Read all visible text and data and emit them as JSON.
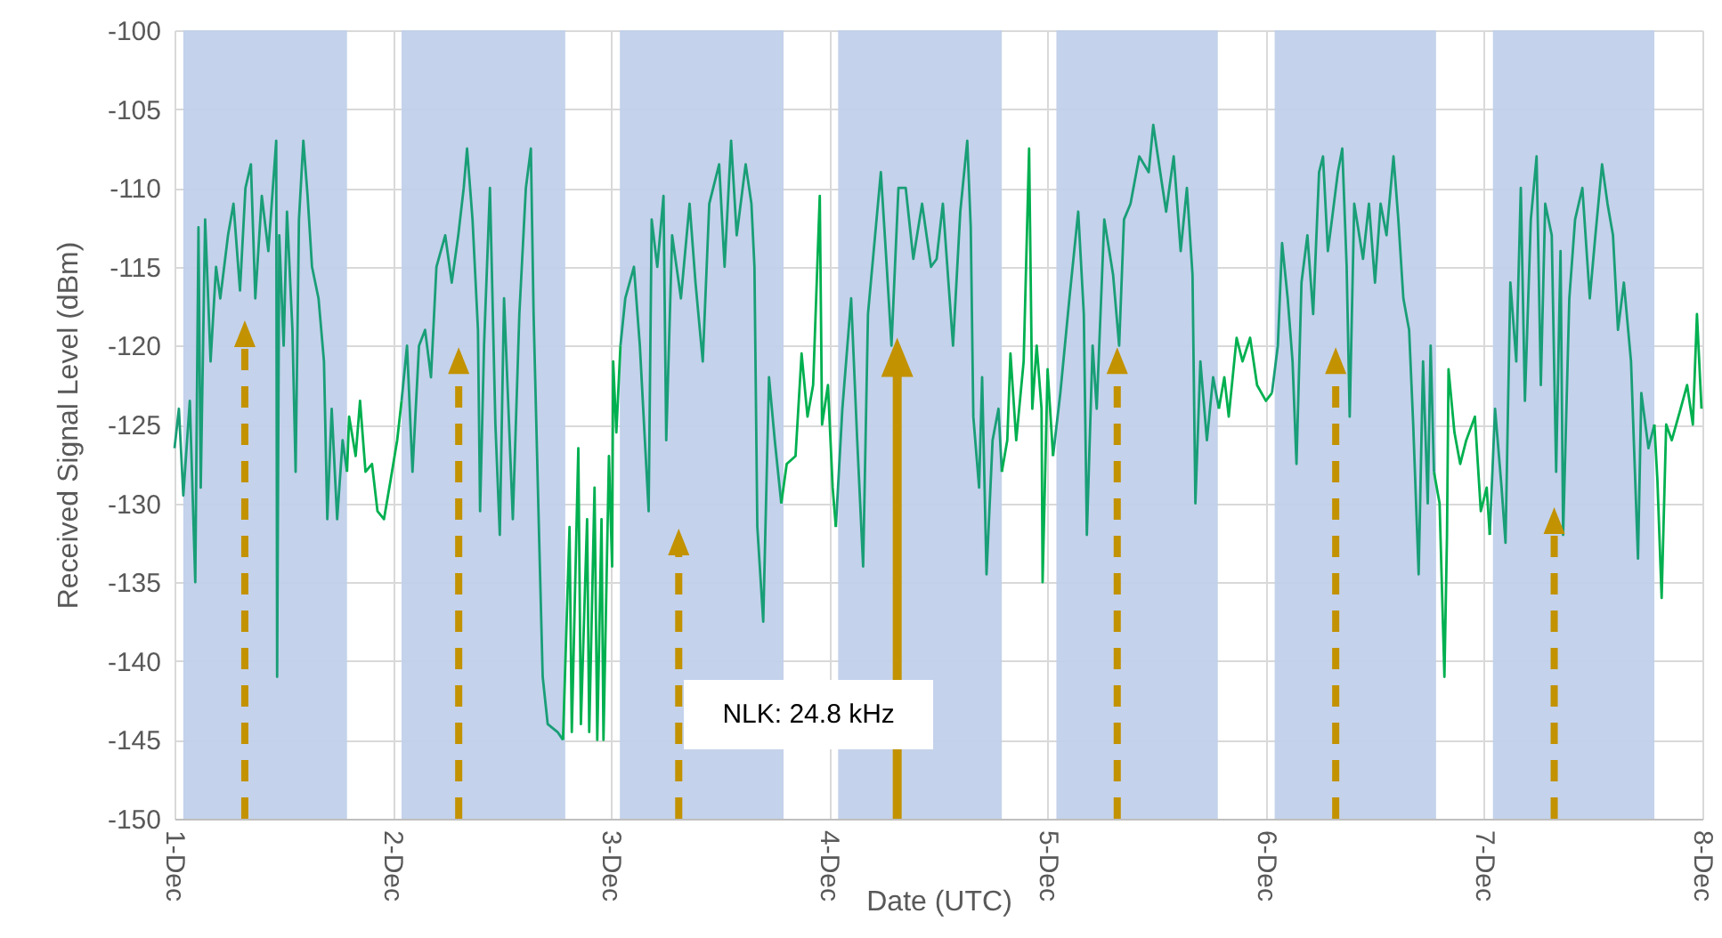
{
  "chart_data": {
    "type": "line",
    "xlabel": "Date (UTC)",
    "ylabel": "Received Signal Level (dBm)",
    "xlim": [
      "--12-01",
      "--12-08"
    ],
    "xticks": [
      {
        "value": "--12-01",
        "label": "1-Dec"
      },
      {
        "value": "--12-02",
        "label": "2-Dec"
      },
      {
        "value": "--12-03",
        "label": "3-Dec"
      },
      {
        "value": "--12-04",
        "label": "4-Dec"
      },
      {
        "value": "--12-05",
        "label": "5-Dec"
      },
      {
        "value": "--12-06",
        "label": "6-Dec"
      },
      {
        "value": "--12-07",
        "label": "7-Dec"
      },
      {
        "value": "--12-08",
        "label": "8-Dec"
      }
    ],
    "ylim": [
      -150,
      -100
    ],
    "yticks": [
      -150,
      -145,
      -140,
      -135,
      -130,
      -125,
      -120,
      -115,
      -110,
      -105,
      -100
    ],
    "grid": true,
    "series": [
      {
        "color": "#199e77",
        "x": [
          "--12-01T00:00",
          "--12-01T00:29",
          "--12-01T00:58",
          "--12-01T01:41",
          "--12-01T02:17",
          "--12-01T02:38",
          "--12-01T02:53",
          "--12-01T03:22",
          "--12-01T03:58",
          "--12-01T04:34",
          "--12-01T05:02",
          "--12-01T05:53",
          "--12-01T06:29",
          "--12-01T07:12",
          "--12-01T07:48",
          "--12-01T08:24",
          "--12-01T08:53",
          "--12-01T09:36",
          "--12-01T10:19",
          "--12-01T11:11",
          "--12-01T11:17",
          "--12-01T11:31",
          "--12-01T12:00",
          "--12-01T12:22",
          "--12-01T12:58",
          "--12-01T13:19",
          "--12-01T13:41",
          "--12-01T14:10",
          "--12-01T14:38",
          "--12-01T15:07",
          "--12-01T15:50",
          "--12-01T16:26",
          "--12-01T16:48",
          "--12-01T17:17",
          "--12-01T17:53",
          "--12-01T18:29",
          "--12-01T18:58",
          "--12-01T21:36",
          "--12-02T00:58",
          "--12-02T01:34",
          "--12-02T02:10",
          "--12-02T02:53",
          "--12-02T03:33",
          "--12-02T04:12",
          "--12-02T04:48",
          "--12-02T05:46",
          "--12-02T06:29",
          "--12-02T07:12",
          "--12-02T07:48",
          "--12-02T08:10",
          "--12-02T08:46",
          "--12-02T09:22",
          "--12-02T09:36",
          "--12-02T10:02",
          "--12-02T10:41",
          "--12-02T11:17",
          "--12-02T11:46",
          "--12-02T12:14",
          "--12-02T13:12",
          "--12-02T13:55",
          "--12-02T14:38",
          "--12-02T15:11",
          "--12-02T15:29",
          "--12-02T16:05",
          "--12-02T16:29",
          "--12-02T17:02",
          "--12-02T18:07",
          "--12-02T18:43",
          "--12-02T21:36",
          "--12-03T01:02",
          "--12-03T01:34",
          "--12-03T02:31",
          "--12-03T03:10",
          "--12-03T04:08",
          "--12-03T04:28",
          "--12-03T05:05",
          "--12-03T05:46",
          "--12-03T06:04",
          "--12-03T06:43",
          "--12-03T07:41",
          "--12-03T08:38",
          "--12-03T09:17",
          "--12-03T10:05",
          "--12-03T10:48",
          "--12-03T11:53",
          "--12-03T12:29",
          "--12-03T13:12",
          "--12-03T13:49",
          "--12-03T14:48",
          "--12-03T15:26",
          "--12-03T15:46",
          "--12-03T16:05",
          "--12-03T16:44",
          "--12-03T17:22",
          "--12-03T18:00",
          "--12-03T18:43",
          "--12-03T21:36",
          "--12-04T00:43",
          "--12-04T01:26",
          "--12-04T02:24",
          "--12-04T03:04",
          "--12-04T03:43",
          "--12-04T04:15",
          "--12-04T05:02",
          "--12-04T05:40",
          "--12-04T06:19",
          "--12-04T06:50",
          "--12-04T07:36",
          "--12-04T08:24",
          "--12-04T09:14",
          "--12-04T10:12",
          "--12-04T11:11",
          "--12-04T11:48",
          "--12-04T12:29",
          "--12-04T13:06",
          "--12-04T13:36",
          "--12-04T14:24",
          "--12-04T15:10",
          "--12-04T15:33",
          "--12-04T15:50",
          "--12-04T16:28",
          "--12-04T16:48",
          "--12-04T17:17",
          "--12-04T17:57",
          "--12-04T18:36",
          "--12-04T18:58",
          "--12-04T21:36",
          "--12-05T00:36",
          "--12-05T01:24",
          "--12-05T02:24",
          "--12-05T03:22",
          "--12-05T03:59",
          "--12-05T04:19",
          "--12-05T04:57",
          "--12-05T05:24",
          "--12-05T06:14",
          "--12-05T07:12",
          "--12-05T07:52",
          "--12-05T08:24",
          "--12-05T09:07",
          "--12-05T10:05",
          "--12-05T11:07",
          "--12-05T11:37",
          "--12-05T12:23",
          "--12-05T13:02",
          "--12-05T13:52",
          "--12-05T14:38",
          "--12-05T15:19",
          "--12-05T15:56",
          "--12-05T16:15",
          "--12-05T16:48",
          "--12-05T17:31",
          "--12-05T18:12",
          "--12-05T18:50",
          "--12-05T21:36",
          "--12-06T00:40",
          "--12-06T01:19",
          "--12-06T01:47",
          "--12-06T02:24",
          "--12-06T02:56",
          "--12-06T03:22",
          "--12-06T03:55",
          "--12-06T04:34",
          "--12-06T05:12",
          "--12-06T05:51",
          "--12-06T06:17",
          "--12-06T06:49",
          "--12-06T07:16",
          "--12-06T07:55",
          "--12-06T08:24",
          "--12-06T08:53",
          "--12-06T09:13",
          "--12-06T09:43",
          "--12-06T10:41",
          "--12-06T11:20",
          "--12-06T12:00",
          "--12-06T12:37",
          "--12-06T13:16",
          "--12-06T14:02",
          "--12-06T14:34",
          "--12-06T15:07",
          "--12-06T15:45",
          "--12-06T16:12",
          "--12-06T16:48",
          "--12-06T17:17",
          "--12-06T17:48",
          "--12-06T18:07",
          "--12-06T18:29",
          "--12-06T21:36",
          "--12-07T00:37",
          "--12-07T01:12",
          "--12-07T01:55",
          "--12-07T02:21",
          "--12-07T02:53",
          "--12-07T03:32",
          "--12-07T04:02",
          "--12-07T04:29",
          "--12-07T05:08",
          "--12-07T05:46",
          "--12-07T06:14",
          "--12-07T06:43",
          "--12-07T07:26",
          "--12-07T07:55",
          "--12-07T08:24",
          "--12-07T08:41",
          "--12-07T09:22",
          "--12-07T10:00",
          "--12-07T10:48",
          "--12-07T11:37",
          "--12-07T12:14",
          "--12-07T12:58",
          "--12-07T13:34",
          "--12-07T14:10",
          "--12-07T14:43",
          "--12-07T15:22",
          "--12-07T16:09",
          "--12-07T16:55",
          "--12-07T17:17",
          "--12-07T18:04",
          "--12-07T18:43"
        ],
        "values": [
          -126.5,
          -124,
          -129.5,
          -123.5,
          -135,
          -112.5,
          -129,
          -112,
          -121,
          -115,
          -117,
          -113,
          -111,
          -116.5,
          -110,
          -108.5,
          -117,
          -110.5,
          -114,
          -107,
          -141,
          -113,
          -120,
          -111.5,
          -119,
          -128,
          -112,
          -107,
          -110.5,
          -115,
          -117,
          -121,
          -131,
          -124,
          -131,
          -126,
          -128,
          null,
          -123.5,
          -120,
          -128,
          -120,
          -119,
          -122,
          -115,
          -113,
          -116,
          -113,
          -110,
          -107.5,
          -112,
          -119,
          -130.5,
          -120,
          -110,
          -125,
          -132,
          -117,
          -131,
          -118,
          -110,
          -107.5,
          -118,
          -132,
          -141,
          -144,
          -144.5,
          -145,
          null,
          -120,
          -117,
          -115,
          -120,
          -130.5,
          -112,
          -115,
          -110.5,
          -126,
          -113,
          -117,
          -111,
          -116,
          -121,
          -111,
          -108.5,
          -115,
          -107,
          -113,
          -108.5,
          -111,
          -115,
          -131.5,
          -137.5,
          -122,
          -126,
          -130,
          null,
          -131.5,
          -124,
          -117,
          -126,
          -134,
          -118,
          -113,
          -109,
          -115,
          -120,
          -110,
          -110,
          -114.5,
          -111,
          -115,
          -114.5,
          -111,
          -116,
          -120,
          -111.5,
          -107,
          -112.5,
          -124.5,
          -129,
          -122,
          -134.5,
          -126,
          -124,
          -128,
          null,
          -127,
          -123,
          -117,
          -111.5,
          -118,
          -132,
          -120,
          -124,
          -112,
          -115.5,
          -120,
          -112,
          -111,
          -108,
          -109,
          -106,
          -109,
          -111.5,
          -108,
          -114,
          -110,
          -115.5,
          -130,
          -121,
          -126,
          -122,
          -124,
          null,
          -123,
          -120,
          -113.5,
          -117,
          -121,
          -127.5,
          -116,
          -113,
          -118,
          -109,
          -108,
          -114,
          -112,
          -109,
          -107.5,
          -115,
          -124.5,
          -111,
          -114.5,
          -111,
          -116,
          -111,
          -113,
          -108,
          -112,
          -117,
          -119,
          -125,
          -134.5,
          -121,
          -130,
          -120,
          -128,
          null,
          -132,
          -124,
          -129,
          -132.5,
          -116,
          -121,
          -110,
          -123.5,
          -112,
          -108,
          -122.5,
          -111,
          -113,
          -128,
          -114,
          -132,
          -117,
          -112,
          -110,
          -117,
          -113,
          -108.5,
          -111,
          -113,
          -119,
          -116,
          -121,
          -133.5,
          -123,
          -126.5,
          -125
        ]
      },
      {
        "color": "#00b050",
        "x": [
          "--12-01T18:58",
          "--12-01T19:12",
          "--12-01T19:55",
          "--12-01T20:24",
          "--12-01T21:00",
          "--12-01T21:43",
          "--12-01T22:19",
          "--12-01T23:02",
          "--12-01T23:46",
          "--12-02T00:29",
          "--12-02T00:58",
          "--12-02T09:36",
          "--12-02T18:43",
          "--12-02T19:26",
          "--12-02T19:41",
          "--12-02T20:24",
          "--12-02T20:41",
          "--12-02T21:22",
          "--12-02T21:36",
          "--12-02T22:11",
          "--12-02T22:29",
          "--12-02T22:57",
          "--12-02T23:10",
          "--12-02T23:46",
          "--12-03T00:07",
          "--12-03T00:14",
          "--12-03T00:35",
          "--12-03T01:02",
          "--12-03T09:36",
          "--12-03T18:43",
          "--12-03T19:19",
          "--12-03T20:17",
          "--12-03T20:57",
          "--12-03T21:36",
          "--12-03T22:13",
          "--12-03T22:57",
          "--12-03T23:12",
          "--12-03T23:51",
          "--12-04T00:22",
          "--12-04T00:43",
          "--12-04T09:36",
          "--12-04T18:58",
          "--12-04T19:34",
          "--12-04T19:55",
          "--12-04T20:33",
          "--12-04T21:22",
          "--12-04T21:58",
          "--12-04T22:19",
          "--12-04T22:48",
          "--12-04T23:20",
          "--12-04T23:27",
          "--12-05T00:00",
          "--12-05T00:36",
          "--12-05T09:36",
          "--12-05T18:50",
          "--12-05T19:26",
          "--12-05T19:55",
          "--12-05T20:47",
          "--12-05T21:26",
          "--12-05T22:16",
          "--12-05T23:02",
          "--12-06T00:00",
          "--12-06T00:40",
          "--12-06T09:36",
          "--12-06T18:29",
          "--12-06T19:06",
          "--12-06T19:38",
          "--12-06T19:55",
          "--12-06T20:05",
          "--12-06T20:44",
          "--12-06T21:22",
          "--12-06T22:02",
          "--12-06T22:59",
          "--12-06T23:38",
          "--12-07T00:17",
          "--12-07T00:37",
          "--12-07T09:36",
          "--12-07T18:43",
          "--12-07T19:03",
          "--12-07T19:31",
          "--12-07T20:01",
          "--12-07T20:38",
          "--12-07T21:36",
          "--12-07T22:19",
          "--12-07T22:57",
          "--12-07T23:24",
          "--12-07T23:54"
        ],
        "values": [
          -128,
          -124.5,
          -127,
          -123.5,
          -128,
          -127.5,
          -130.5,
          -131,
          -128.5,
          -126,
          -123.5,
          null,
          -145,
          -131.5,
          -144.5,
          -126.5,
          -144,
          -131,
          -144.5,
          -129,
          -145,
          -131,
          -145,
          -127,
          -134,
          -121,
          -125.5,
          -120,
          null,
          -130,
          -127.5,
          -127,
          -120.5,
          -124.5,
          -122.5,
          -110.5,
          -125,
          -122.5,
          -129,
          -131.5,
          null,
          -128,
          -126,
          -120.5,
          -126,
          -121,
          -107.5,
          -124,
          -120,
          -124,
          -135,
          -121.5,
          -127,
          null,
          -124,
          -122,
          -124.5,
          -119.5,
          -121,
          -119.5,
          -122.5,
          -123.5,
          -123,
          null,
          -128,
          -130,
          -141,
          -132,
          -121.5,
          -125.5,
          -127.5,
          -126,
          -124.5,
          -130.5,
          -129,
          -132,
          null,
          -125,
          -128.5,
          -136,
          -125,
          -126,
          -124,
          -122.5,
          -125,
          -118,
          -124
        ]
      }
    ],
    "bands": [
      {
        "axis": "x",
        "from": "--12-01T00:58",
        "to": "--12-01T18:58",
        "color": "#c1d0ea"
      },
      {
        "axis": "x",
        "from": "--12-02T00:58",
        "to": "--12-02T18:58",
        "color": "#c1d0ea"
      },
      {
        "axis": "x",
        "from": "--12-03T00:58",
        "to": "--12-03T18:58",
        "color": "#c1d0ea"
      },
      {
        "axis": "x",
        "from": "--12-04T00:58",
        "to": "--12-04T18:58",
        "color": "#c1d0ea"
      },
      {
        "axis": "x",
        "from": "--12-05T00:58",
        "to": "--12-05T18:43",
        "color": "#c1d0ea"
      },
      {
        "axis": "x",
        "from": "--12-06T00:58",
        "to": "--12-06T18:43",
        "color": "#c1d0ea"
      },
      {
        "axis": "x",
        "from": "--12-07T00:58",
        "to": "--12-07T18:43",
        "color": "#c1d0ea"
      }
    ],
    "annotations": [
      "NLK: 24.8 kHz"
    ]
  }
}
